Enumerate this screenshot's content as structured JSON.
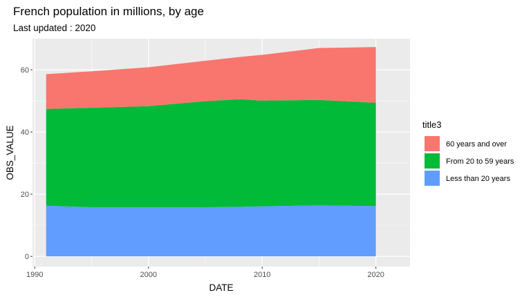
{
  "chart_data": {
    "type": "area",
    "stacked": true,
    "title": "French population in millions, by age",
    "subtitle": "Last updated : 2020",
    "xlabel": "DATE",
    "ylabel": "OBS_VALUE",
    "xlim": [
      1989.8,
      2023
    ],
    "ylim": [
      -3.3,
      70
    ],
    "x_ticks": [
      1990,
      2000,
      2010,
      2020
    ],
    "y_ticks": [
      0,
      20,
      40,
      60
    ],
    "x": [
      1991,
      1995,
      2000,
      2005,
      2008,
      2010,
      2015,
      2020
    ],
    "series": [
      {
        "name": "Less than 20 years",
        "color": "#619CFF",
        "values": [
          16.3,
          15.8,
          15.8,
          15.8,
          15.9,
          16.1,
          16.4,
          16.2
        ]
      },
      {
        "name": "From 20 to 59 years",
        "color": "#00BA38",
        "values": [
          31.1,
          32.0,
          32.5,
          34.1,
          34.6,
          34.0,
          33.9,
          33.2
        ]
      },
      {
        "name": "60 years and over",
        "color": "#F8766D",
        "values": [
          11.2,
          11.7,
          12.5,
          13.0,
          13.6,
          14.7,
          16.7,
          17.9
        ]
      }
    ],
    "legend": {
      "title": "title3",
      "position": "right"
    },
    "grid": true
  }
}
